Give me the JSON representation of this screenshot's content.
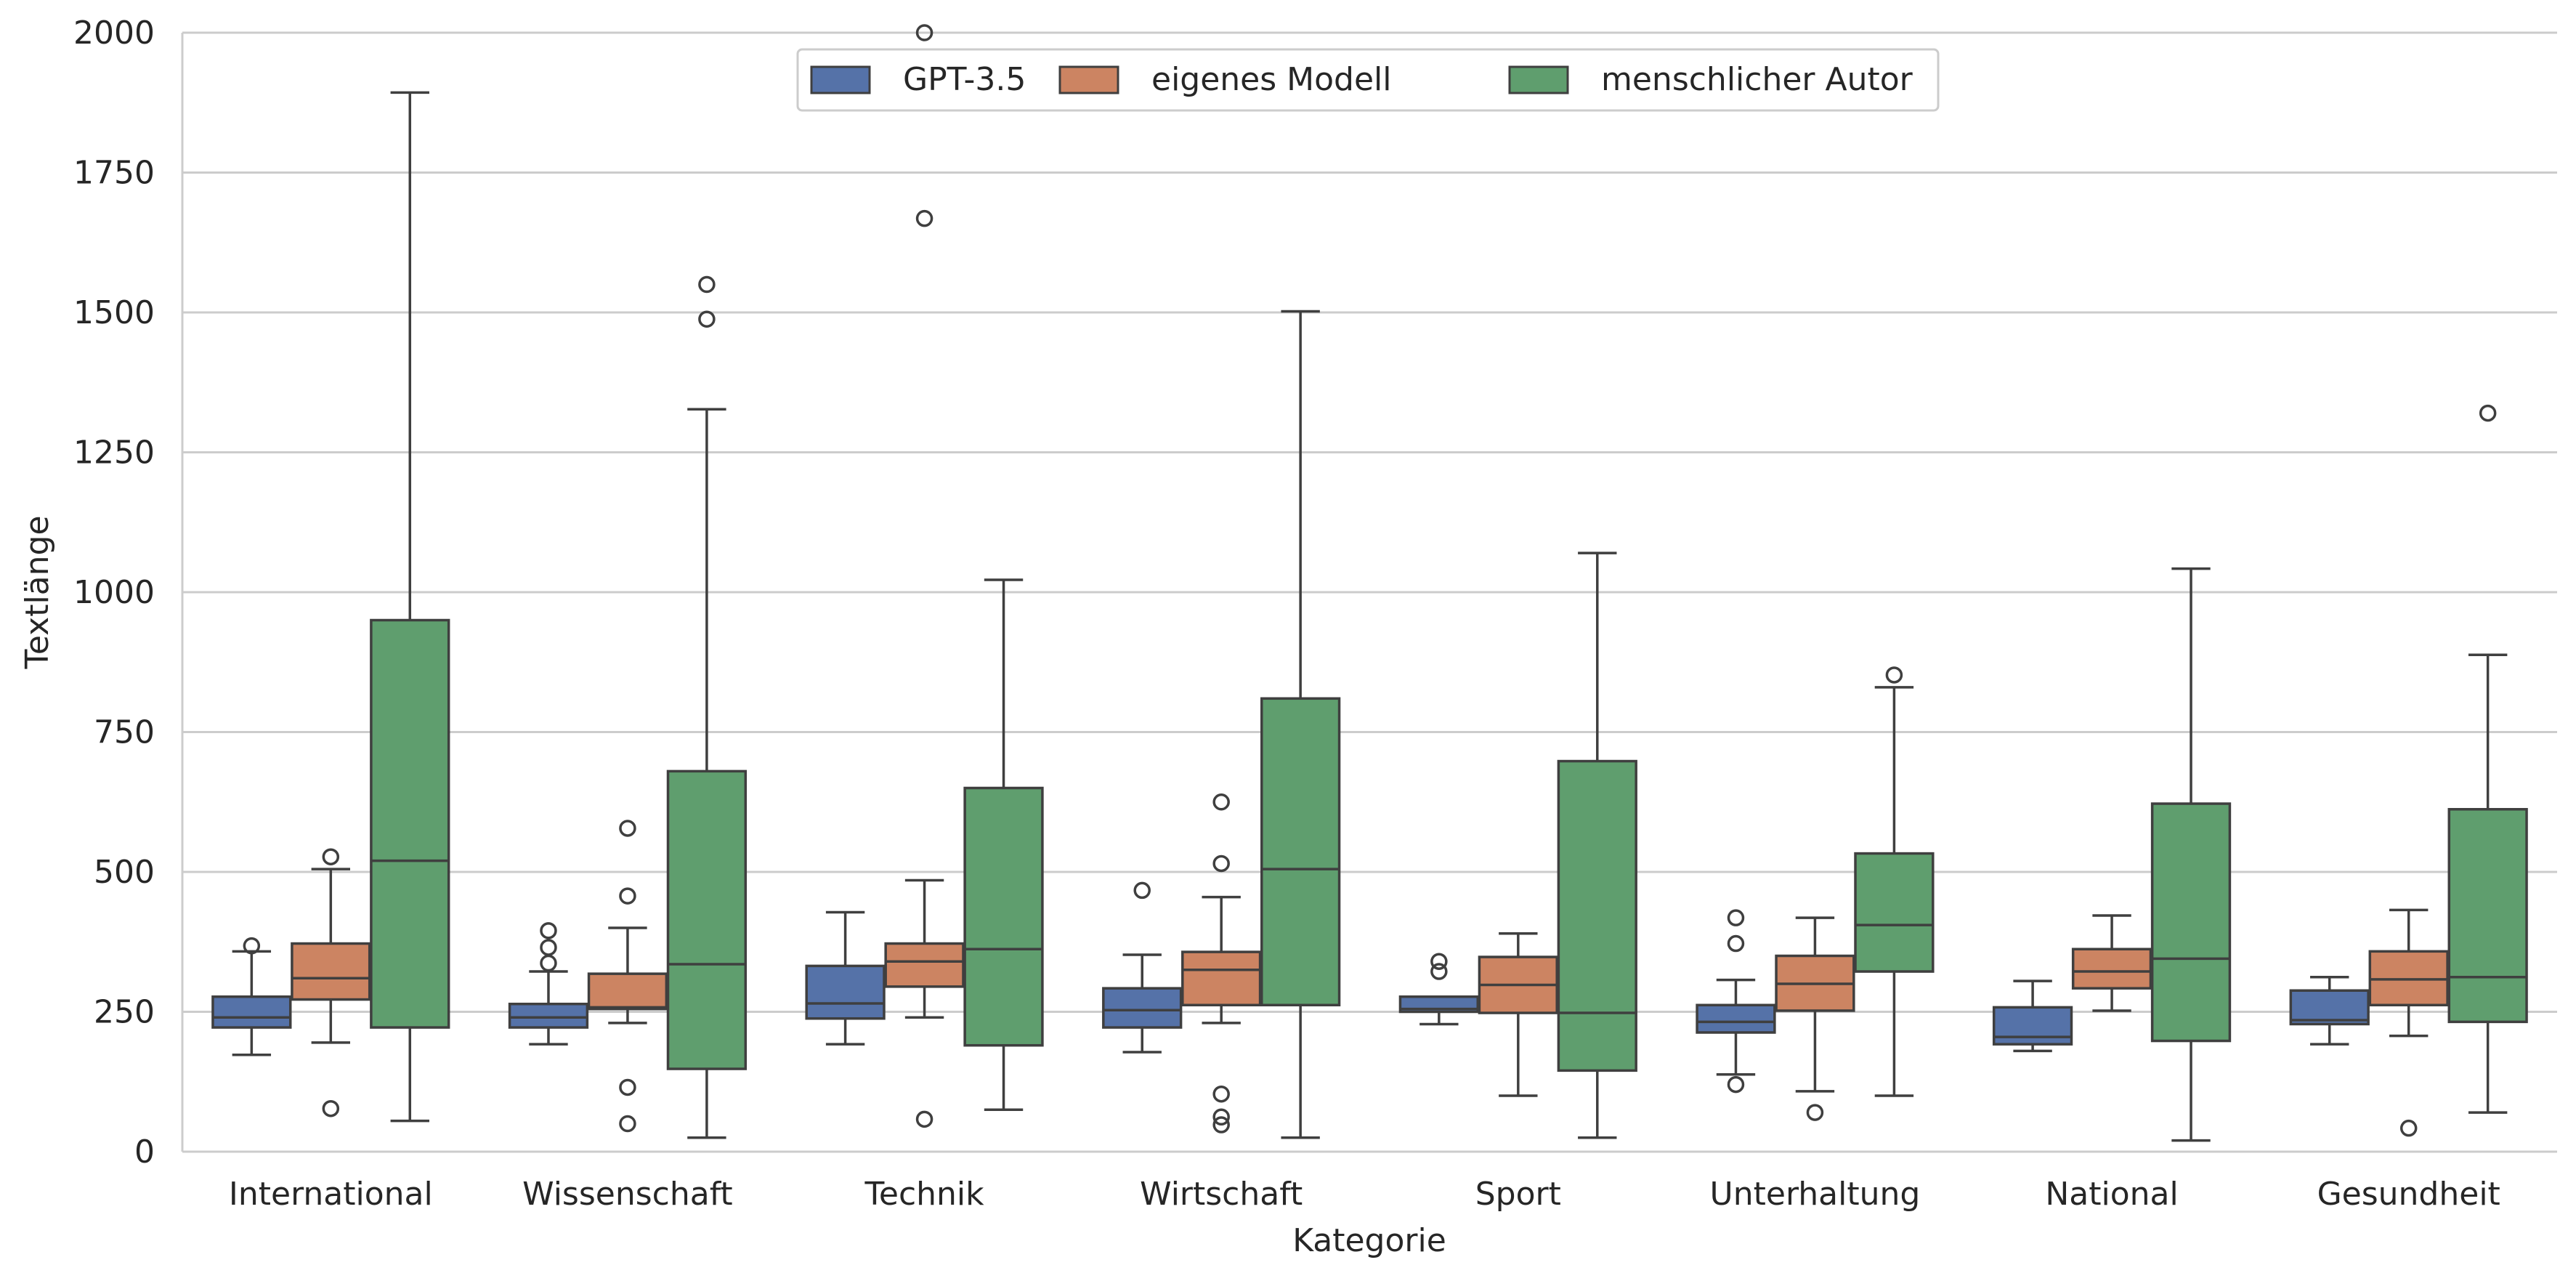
{
  "chart_data": {
    "type": "box",
    "xlabel": "Kategorie",
    "ylabel": "Textlänge",
    "ylim": [
      0,
      2000
    ],
    "yticks": [
      0,
      250,
      500,
      750,
      1000,
      1250,
      1500,
      1750,
      2000
    ],
    "grid": "horizontal",
    "legend_position": "top-center",
    "categories": [
      "International",
      "Wissenschaft",
      "Technik",
      "Wirtschaft",
      "Sport",
      "Unterhaltung",
      "National",
      "Gesundheit"
    ],
    "series": [
      {
        "name": "GPT-3.5",
        "color": "#5572A8",
        "boxes": [
          {
            "whislo": 173,
            "q1": 222,
            "med": 240,
            "q3": 277,
            "whishi": 358,
            "fliers": [
              368
            ]
          },
          {
            "whislo": 192,
            "q1": 222,
            "med": 240,
            "q3": 264,
            "whishi": 322,
            "fliers": [
              337,
              365,
              395
            ]
          },
          {
            "whislo": 192,
            "q1": 238,
            "med": 265,
            "q3": 332,
            "whishi": 428,
            "fliers": []
          },
          {
            "whislo": 178,
            "q1": 222,
            "med": 253,
            "q3": 292,
            "whishi": 352,
            "fliers": [
              467
            ]
          },
          {
            "whislo": 228,
            "q1": 250,
            "med": 255,
            "q3": 277,
            "whishi": 277,
            "fliers": [
              322,
              340
            ]
          },
          {
            "whislo": 138,
            "q1": 213,
            "med": 232,
            "q3": 262,
            "whishi": 307,
            "fliers": [
              120,
              372,
              418
            ]
          },
          {
            "whislo": 180,
            "q1": 192,
            "med": 205,
            "q3": 258,
            "whishi": 305,
            "fliers": []
          },
          {
            "whislo": 192,
            "q1": 228,
            "med": 235,
            "q3": 288,
            "whishi": 312,
            "fliers": []
          }
        ]
      },
      {
        "name": "eigenes Modell",
        "color": "#CC8462",
        "boxes": [
          {
            "whislo": 195,
            "q1": 272,
            "med": 310,
            "q3": 372,
            "whishi": 505,
            "fliers": [
              77,
              527
            ]
          },
          {
            "whislo": 230,
            "q1": 255,
            "med": 258,
            "q3": 318,
            "whishi": 400,
            "fliers": [
              50,
              115,
              457,
              578
            ]
          },
          {
            "whislo": 240,
            "q1": 295,
            "med": 340,
            "q3": 372,
            "whishi": 485,
            "fliers": [
              58,
              2000,
              1668
            ]
          },
          {
            "whislo": 230,
            "q1": 262,
            "med": 325,
            "q3": 357,
            "whishi": 455,
            "fliers": [
              48,
              62,
              103,
              515,
              625
            ]
          },
          {
            "whislo": 100,
            "q1": 248,
            "med": 298,
            "q3": 348,
            "whishi": 390,
            "fliers": []
          },
          {
            "whislo": 108,
            "q1": 252,
            "med": 300,
            "q3": 350,
            "whishi": 418,
            "fliers": [
              70
            ]
          },
          {
            "whislo": 252,
            "q1": 292,
            "med": 322,
            "q3": 362,
            "whishi": 422,
            "fliers": []
          },
          {
            "whislo": 207,
            "q1": 262,
            "med": 308,
            "q3": 358,
            "whishi": 432,
            "fliers": [
              42
            ]
          }
        ]
      },
      {
        "name": "menschlicher Autor",
        "color": "#5F9E6E",
        "boxes": [
          {
            "whislo": 55,
            "q1": 222,
            "med": 520,
            "q3": 950,
            "whishi": 1893,
            "fliers": []
          },
          {
            "whislo": 25,
            "q1": 148,
            "med": 335,
            "q3": 680,
            "whishi": 1327,
            "fliers": [
              1488,
              1550
            ]
          },
          {
            "whislo": 75,
            "q1": 190,
            "med": 362,
            "q3": 650,
            "whishi": 1022,
            "fliers": []
          },
          {
            "whislo": 25,
            "q1": 262,
            "med": 505,
            "q3": 810,
            "whishi": 1502,
            "fliers": []
          },
          {
            "whislo": 25,
            "q1": 145,
            "med": 248,
            "q3": 698,
            "whishi": 1070,
            "fliers": []
          },
          {
            "whislo": 100,
            "q1": 322,
            "med": 405,
            "q3": 533,
            "whishi": 830,
            "fliers": [
              852
            ]
          },
          {
            "whislo": 20,
            "q1": 198,
            "med": 345,
            "q3": 622,
            "whishi": 1042,
            "fliers": []
          },
          {
            "whislo": 70,
            "q1": 232,
            "med": 312,
            "q3": 612,
            "whishi": 888,
            "fliers": [
              1320
            ]
          }
        ]
      }
    ]
  }
}
